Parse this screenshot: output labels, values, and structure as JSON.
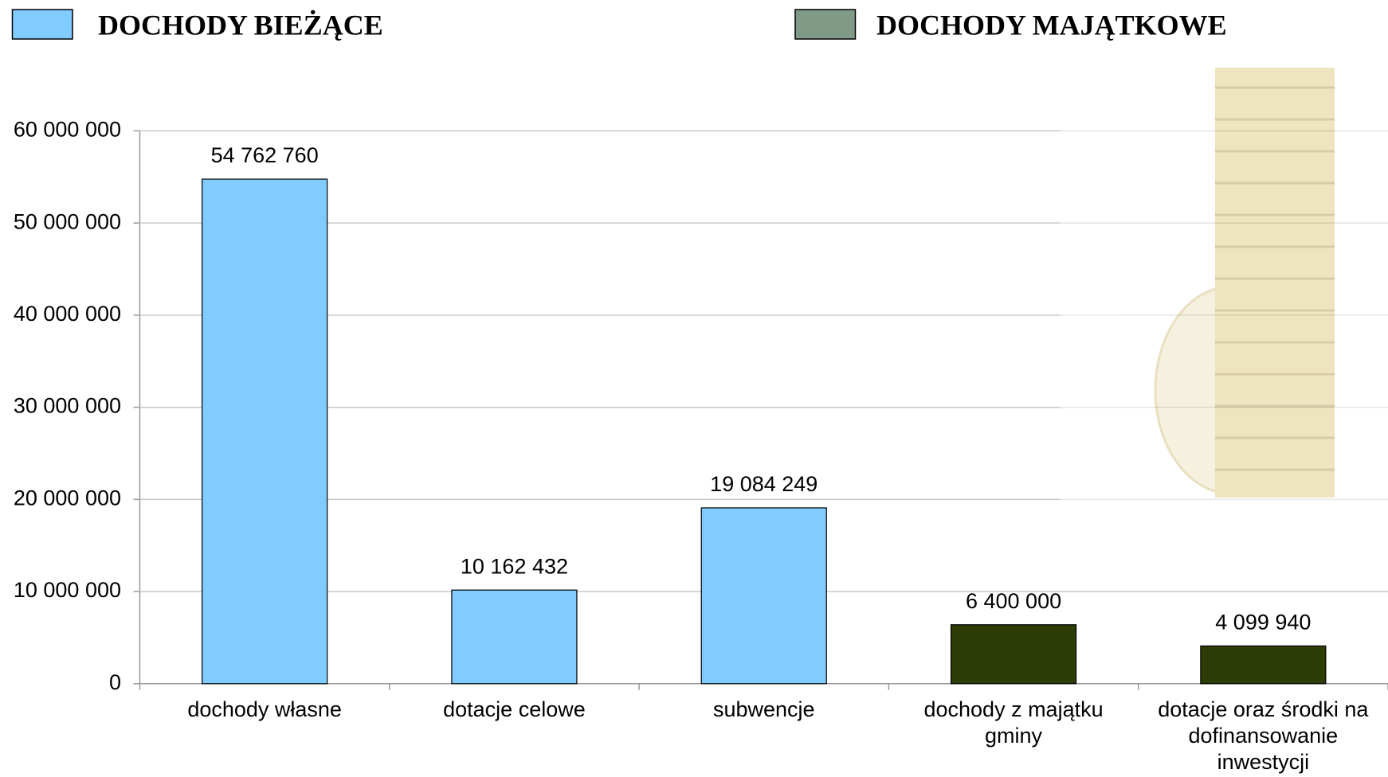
{
  "chart_data": {
    "type": "bar",
    "categories": [
      "dochody własne",
      "dotacje celowe",
      "subwencje",
      "dochody z majątku gminy",
      "dotacje oraz środki na dofinansowanie inwestycji"
    ],
    "series": [
      {
        "name": "DOCHODY BIEŻĄCE",
        "color": "#80cbff",
        "swatch_color": "#80cbff",
        "values": [
          54762760,
          10162432,
          19084249,
          null,
          null
        ],
        "value_labels": [
          "54 762 760",
          "10 162 432",
          "19 084 249",
          null,
          null
        ]
      },
      {
        "name": "DOCHODY MAJĄTKOWE",
        "color": "#2e3d05",
        "swatch_color": "#7f9a87",
        "values": [
          null,
          null,
          null,
          6400000,
          4099940
        ],
        "value_labels": [
          null,
          null,
          null,
          "6 400 000",
          "4 099 940"
        ]
      }
    ],
    "ylim": [
      0,
      60000000
    ],
    "yticks": [
      {
        "value": 0,
        "label": "0"
      },
      {
        "value": 10000000,
        "label": "10 000 000"
      },
      {
        "value": 20000000,
        "label": "20 000 000"
      },
      {
        "value": 30000000,
        "label": "30 000 000"
      },
      {
        "value": 40000000,
        "label": "40 000 000"
      },
      {
        "value": 50000000,
        "label": "50 000 000"
      },
      {
        "value": 60000000,
        "label": "60 000 000"
      }
    ],
    "grid": true
  }
}
